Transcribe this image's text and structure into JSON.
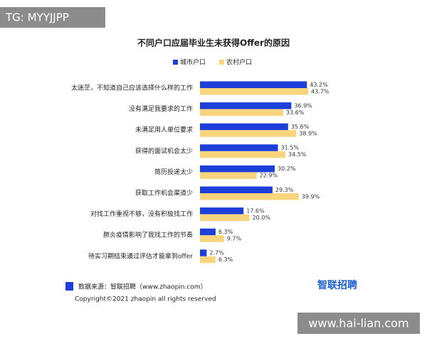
{
  "watermark_top": "TG: MYYJJPP",
  "chart_data": {
    "type": "bar",
    "title": "不同户口应届毕业生未获得Offer的原因",
    "categories": [
      "太迷茫，不知道自己应该选择什么样的工作",
      "没有满足我要求的工作",
      "未满足用人单位要求",
      "获得的面试机会太少",
      "简历投递太少",
      "获取工作机会渠道少",
      "对找工作重视不够，没有积极找工作",
      "肺炎疫情影响了我找工作的节奏",
      "待实习期结束通过评估才能拿到offer"
    ],
    "series": [
      {
        "name": "城市户口",
        "color": "#1b3fd8",
        "values": [
          43.2,
          36.9,
          35.6,
          31.5,
          30.2,
          29.3,
          17.6,
          6.3,
          2.7
        ],
        "value_labels": [
          "43.2%",
          "36.9%",
          "35.6%",
          "31.5%",
          "30.2%",
          "29.3%",
          "17.6%",
          "6.3%",
          "2.7%"
        ]
      },
      {
        "name": "农村户口",
        "color": "#f8d57c",
        "values": [
          43.7,
          33.6,
          38.9,
          34.5,
          22.9,
          39.9,
          20.0,
          9.7,
          6.3
        ],
        "value_labels": [
          "43.7%",
          "33.6%",
          "38.9%",
          "34.5%",
          "22.9%",
          "39.9%",
          "20.0%",
          "9.7%",
          "6.3%"
        ]
      }
    ]
  },
  "source": "数据来源：智联招聘（www.zhaopin.com）",
  "logo": "智联招聘",
  "copyright": "Copyright©2021 zhaopin all rights reserved",
  "watermark_bottom": "www.hai-lian.com"
}
